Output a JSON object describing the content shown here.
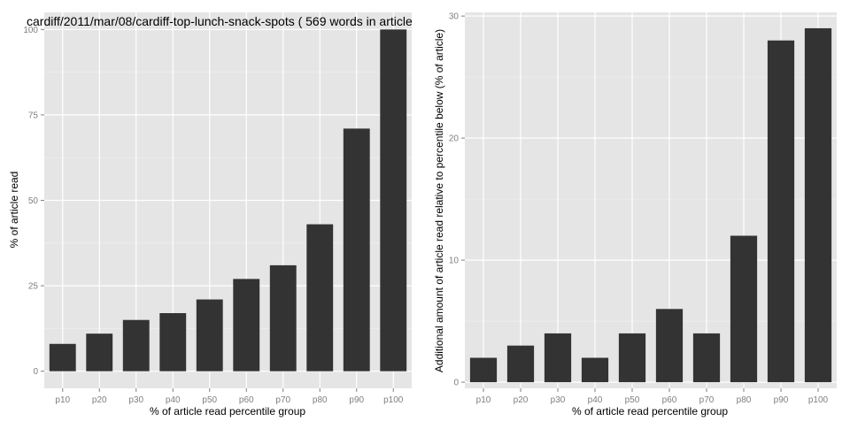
{
  "chart_data": [
    {
      "type": "bar",
      "title": "cardiff/2011/mar/08/cardiff-top-lunch-snack-spots ( 569 words in article",
      "xlabel": "% of article read percentile group",
      "ylabel": "% of article read",
      "categories": [
        "p10",
        "p20",
        "p30",
        "p40",
        "p50",
        "p60",
        "p70",
        "p80",
        "p90",
        "p100"
      ],
      "values": [
        8,
        11,
        15,
        17,
        21,
        27,
        31,
        43,
        71,
        100
      ],
      "yticks": [
        0,
        25,
        50,
        75,
        100
      ],
      "ylim": [
        -5,
        105
      ],
      "grid": true,
      "colors": {
        "panel": "#e5e5e5",
        "grid": "#ffffff",
        "bar": "#333333",
        "tick_text": "#7f7f7f"
      }
    },
    {
      "type": "bar",
      "title": "",
      "xlabel": "% of article read percentile group",
      "ylabel": "Additional amount of article read relative to percentile below (% of article)",
      "categories": [
        "p10",
        "p20",
        "p30",
        "p40",
        "p50",
        "p60",
        "p70",
        "p80",
        "p90",
        "p100"
      ],
      "values": [
        2,
        3,
        4,
        2,
        4,
        6,
        4,
        12,
        28,
        29
      ],
      "yticks": [
        0,
        10,
        20,
        30
      ],
      "ylim": [
        -0.5,
        30.3
      ],
      "grid": true,
      "colors": {
        "panel": "#e5e5e5",
        "grid": "#ffffff",
        "bar": "#333333",
        "tick_text": "#7f7f7f"
      }
    }
  ]
}
